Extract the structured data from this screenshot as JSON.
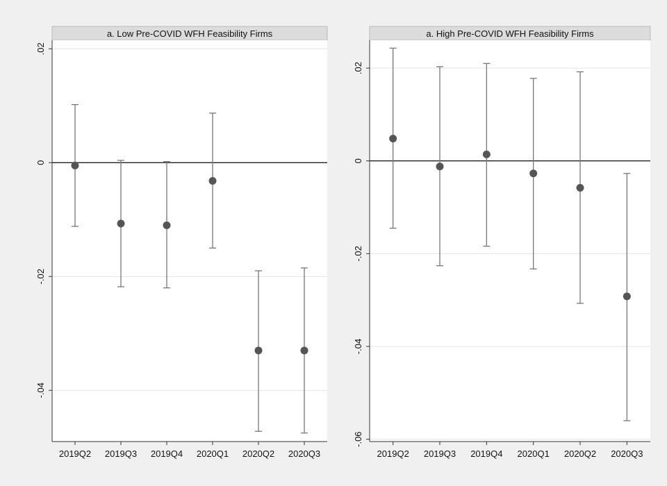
{
  "chart_data": [
    {
      "type": "scatter",
      "title": "a. Low Pre-COVID WFH Feasibility Firms",
      "categories": [
        "2019Q2",
        "2019Q3",
        "2019Q4",
        "2020Q1",
        "2020Q2",
        "2020Q3"
      ],
      "series": [
        {
          "values": [
            -0.0005,
            -0.0107,
            -0.011,
            -0.0032,
            -0.033,
            -0.033
          ],
          "ci_low": [
            -0.0112,
            -0.0218,
            -0.022,
            -0.015,
            -0.0472,
            -0.0475
          ],
          "ci_high": [
            0.0102,
            0.0004,
            0.0002,
            0.0087,
            -0.019,
            -0.0185
          ],
          "color": "#555555"
        }
      ],
      "yticks": [
        0.02,
        0,
        -0.02,
        -0.04
      ],
      "ytick_labels": [
        ".02",
        "0",
        "-.02",
        "-.04"
      ],
      "ylim": [
        -0.049,
        0.0215
      ],
      "zero_line": true,
      "grid": true,
      "legend": "none"
    },
    {
      "type": "scatter",
      "title": "a. High Pre-COVID WFH Feasibility Firms",
      "categories": [
        "2019Q2",
        "2019Q3",
        "2019Q4",
        "2020Q1",
        "2020Q2",
        "2020Q3"
      ],
      "series": [
        {
          "values": [
            0.0048,
            -0.0012,
            0.0014,
            -0.0027,
            -0.0058,
            -0.0292
          ],
          "ci_low": [
            -0.0145,
            -0.0226,
            -0.0184,
            -0.0233,
            -0.0307,
            -0.056
          ],
          "ci_high": [
            0.0243,
            0.0203,
            0.021,
            0.0178,
            0.0192,
            -0.0027
          ],
          "color": "#555555"
        }
      ],
      "yticks": [
        0.02,
        0,
        -0.02,
        -0.04,
        -0.06
      ],
      "ytick_labels": [
        ".02",
        "0",
        "-.02",
        "-.04",
        "-.06"
      ],
      "ylim": [
        -0.0605,
        0.026
      ],
      "zero_line": true,
      "grid": true,
      "legend": "none"
    }
  ],
  "colors": {
    "background": "#f0f0f0",
    "plot_area": "#ffffff",
    "title_bar": "#dcdcdc",
    "marker": "#555555",
    "error_bar": "#777777",
    "grid": "#e3e3e3",
    "axis": "#333333"
  }
}
